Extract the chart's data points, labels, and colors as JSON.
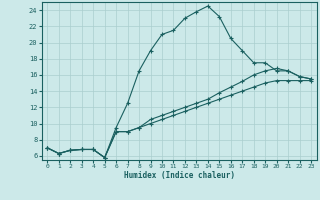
{
  "xlabel": "Humidex (Indice chaleur)",
  "xlim": [
    -0.5,
    23.5
  ],
  "ylim": [
    5.5,
    25.0
  ],
  "xticks": [
    0,
    1,
    2,
    3,
    4,
    5,
    6,
    7,
    8,
    9,
    10,
    11,
    12,
    13,
    14,
    15,
    16,
    17,
    18,
    19,
    20,
    21,
    22,
    23
  ],
  "yticks": [
    6,
    8,
    10,
    12,
    14,
    16,
    18,
    20,
    22,
    24
  ],
  "bg_color": "#cce9e9",
  "grid_color": "#aacece",
  "line_color": "#1a6060",
  "main_x": [
    0,
    1,
    2,
    3,
    4,
    5,
    6,
    7,
    8,
    9,
    10,
    11,
    12,
    13,
    14,
    15,
    16,
    17,
    18,
    19,
    20,
    21,
    22,
    23
  ],
  "main_y": [
    7.0,
    6.3,
    6.7,
    6.8,
    6.8,
    5.8,
    9.5,
    12.5,
    16.5,
    19.0,
    21.0,
    21.5,
    23.0,
    23.8,
    24.5,
    23.2,
    20.5,
    19.0,
    17.5,
    17.5,
    16.5,
    16.5,
    15.8,
    15.5
  ],
  "line2_x": [
    0,
    1,
    2,
    3,
    4,
    5,
    6,
    7,
    8,
    9,
    10,
    11,
    12,
    13,
    14,
    15,
    16,
    17,
    18,
    19,
    20,
    21,
    22,
    23
  ],
  "line2_y": [
    7.0,
    6.3,
    6.7,
    6.8,
    6.8,
    5.8,
    9.0,
    9.0,
    9.5,
    10.0,
    10.5,
    11.0,
    11.5,
    12.0,
    12.5,
    13.0,
    13.5,
    14.0,
    14.5,
    15.0,
    15.3,
    15.3,
    15.3,
    15.3
  ],
  "line3_x": [
    0,
    1,
    2,
    3,
    4,
    5,
    6,
    7,
    8,
    9,
    10,
    11,
    12,
    13,
    14,
    15,
    16,
    17,
    18,
    19,
    20,
    21,
    22,
    23
  ],
  "line3_y": [
    7.0,
    6.3,
    6.7,
    6.8,
    6.8,
    5.8,
    9.0,
    9.0,
    9.5,
    10.5,
    11.0,
    11.5,
    12.0,
    12.5,
    13.0,
    13.8,
    14.5,
    15.2,
    16.0,
    16.5,
    16.8,
    16.5,
    15.8,
    15.5
  ]
}
